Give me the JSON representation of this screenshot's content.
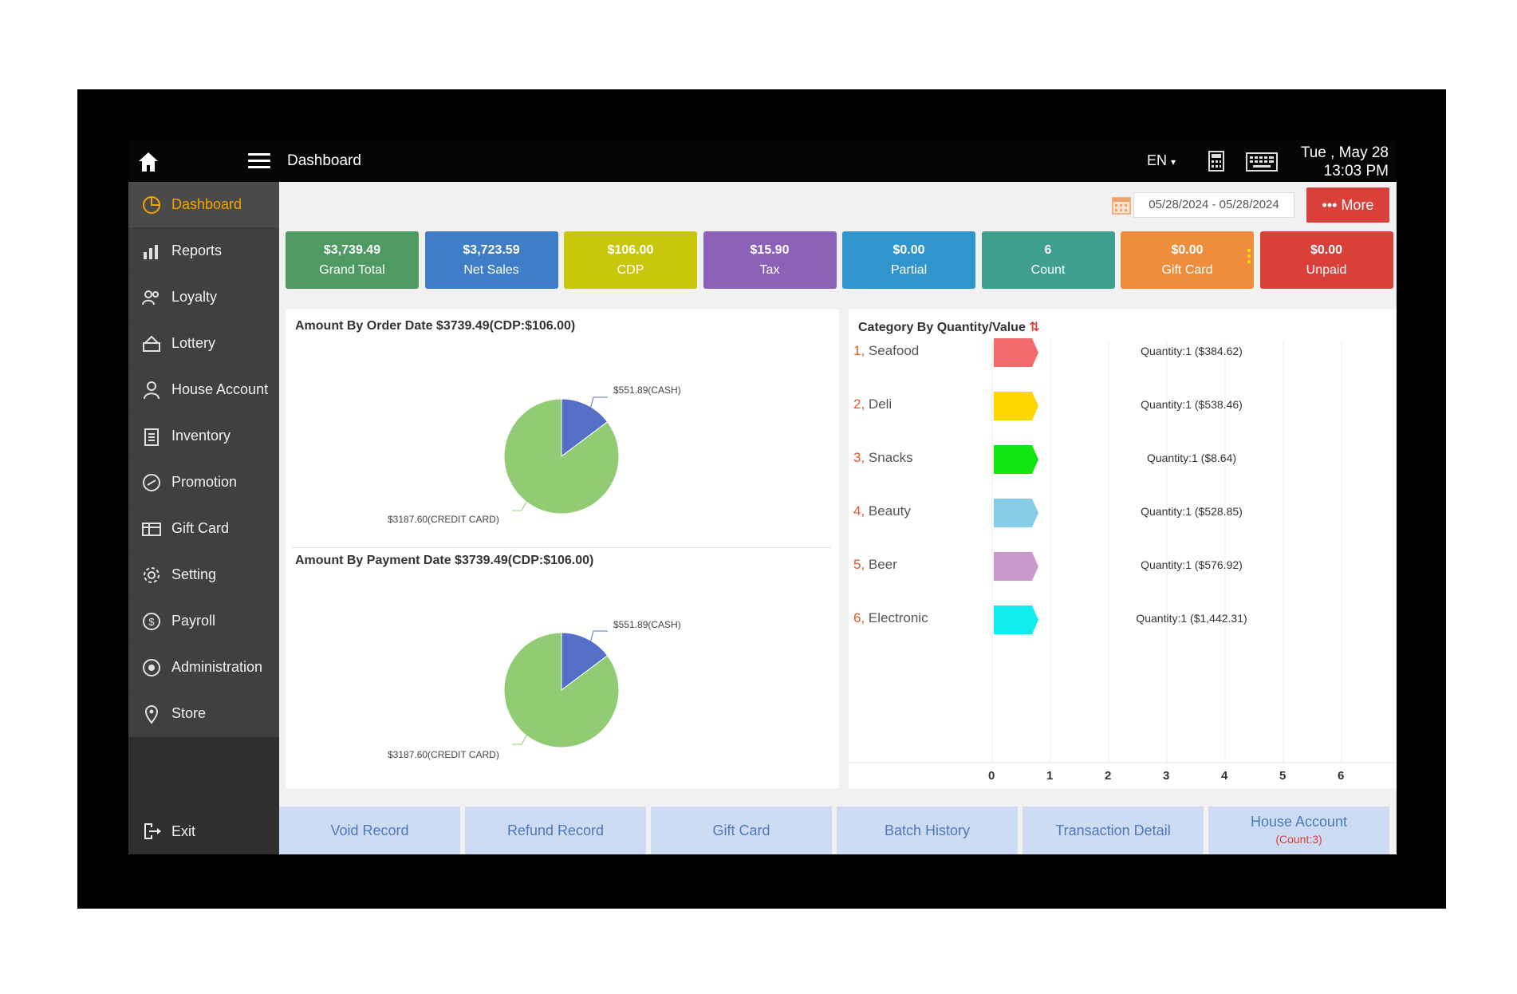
{
  "topbar": {
    "title": "Dashboard",
    "language": "EN",
    "date_line1": "Tue , May 28",
    "date_line2": "13:03 PM"
  },
  "sidebar": {
    "items": [
      {
        "label": "Dashboard",
        "icon": "chart-pie-icon",
        "active": true
      },
      {
        "label": "Reports",
        "icon": "bar-chart-icon"
      },
      {
        "label": "Loyalty",
        "icon": "users-icon"
      },
      {
        "label": "Lottery",
        "icon": "lottery-icon"
      },
      {
        "label": "House Account",
        "icon": "person-icon"
      },
      {
        "label": "Inventory",
        "icon": "clipboard-icon"
      },
      {
        "label": "Promotion",
        "icon": "promotion-icon"
      },
      {
        "label": "Gift Card",
        "icon": "gift-card-icon"
      },
      {
        "label": "Setting",
        "icon": "gear-icon"
      },
      {
        "label": "Payroll",
        "icon": "dollar-circle-icon"
      },
      {
        "label": "Administration",
        "icon": "admin-icon"
      },
      {
        "label": "Store",
        "icon": "map-pin-icon"
      }
    ],
    "exit_label": "Exit"
  },
  "filter": {
    "date_range": "05/28/2024 - 05/28/2024",
    "more_label": "••• More"
  },
  "stats": [
    {
      "value": "$3,739.49",
      "label": "Grand Total",
      "color": "#4f9a62"
    },
    {
      "value": "$3,723.59",
      "label": "Net Sales",
      "color": "#3f7ec6"
    },
    {
      "value": "$106.00",
      "label": "CDP",
      "color": "#c9c70b"
    },
    {
      "value": "$15.90",
      "label": "Tax",
      "color": "#8b62b8"
    },
    {
      "value": "$0.00",
      "label": "Partial",
      "color": "#2f95cc"
    },
    {
      "value": "6",
      "label": "Count",
      "color": "#3fa08f"
    },
    {
      "value": "$0.00",
      "label": "Gift Card",
      "color": "#ee8d3c"
    },
    {
      "value": "$0.00",
      "label": "Unpaid",
      "color": "#d9403a"
    }
  ],
  "order_chart": {
    "title": "Amount By Order Date $3739.49(CDP:$106.00)",
    "label_cash": "$551.89(CASH)",
    "label_card": "$3187.60(CREDIT CARD)"
  },
  "payment_chart": {
    "title": "Amount By Payment Date $3739.49(CDP:$106.00)",
    "label_cash": "$551.89(CASH)",
    "label_card": "$3187.60(CREDIT CARD)"
  },
  "category": {
    "title": "Category By Quantity/Value",
    "rows": [
      {
        "num": "1,",
        "name": "Seafood",
        "qty": "Quantity:1 ($384.62)",
        "color": "#f36b6b"
      },
      {
        "num": "2,",
        "name": "Deli",
        "qty": "Quantity:1 ($538.46)",
        "color": "#ffd600"
      },
      {
        "num": "3,",
        "name": "Snacks",
        "qty": "Quantity:1 ($8.64)",
        "color": "#11e611"
      },
      {
        "num": "4,",
        "name": "Beauty",
        "qty": "Quantity:1 ($528.85)",
        "color": "#87cdea"
      },
      {
        "num": "5,",
        "name": "Beer",
        "qty": "Quantity:1 ($576.92)",
        "color": "#cc99cc"
      },
      {
        "num": "6,",
        "name": "Electronic",
        "qty": "Quantity:1 ($1,442.31)",
        "color": "#11ecec"
      }
    ],
    "axis_ticks": [
      "0",
      "1",
      "2",
      "3",
      "4",
      "5",
      "6"
    ]
  },
  "chart_data": [
    {
      "type": "pie",
      "title": "Amount By Order Date $3739.49(CDP:$106.00)",
      "slices": [
        {
          "label": "$551.89(CASH)",
          "value": 551.89,
          "color": "#5470c6"
        },
        {
          "label": "$3187.60(CREDIT CARD)",
          "value": 3187.6,
          "color": "#91cc75"
        }
      ]
    },
    {
      "type": "pie",
      "title": "Amount By Payment Date $3739.49(CDP:$106.00)",
      "slices": [
        {
          "label": "$551.89(CASH)",
          "value": 551.89,
          "color": "#5470c6"
        },
        {
          "label": "$3187.60(CREDIT CARD)",
          "value": 3187.6,
          "color": "#91cc75"
        }
      ]
    },
    {
      "type": "bar",
      "title": "Category By Quantity/Value",
      "categories": [
        "Seafood",
        "Deli",
        "Snacks",
        "Beauty",
        "Beer",
        "Electronic"
      ],
      "values": [
        1,
        1,
        1,
        1,
        1,
        1
      ],
      "xlim": [
        0,
        6
      ]
    }
  ],
  "bottom_buttons": [
    {
      "label": "Void Record"
    },
    {
      "label": "Refund Record"
    },
    {
      "label": "Gift Card"
    },
    {
      "label": "Batch History"
    },
    {
      "label": "Transaction Detail"
    },
    {
      "label": "House Account",
      "sub": "(Count:3)"
    }
  ]
}
